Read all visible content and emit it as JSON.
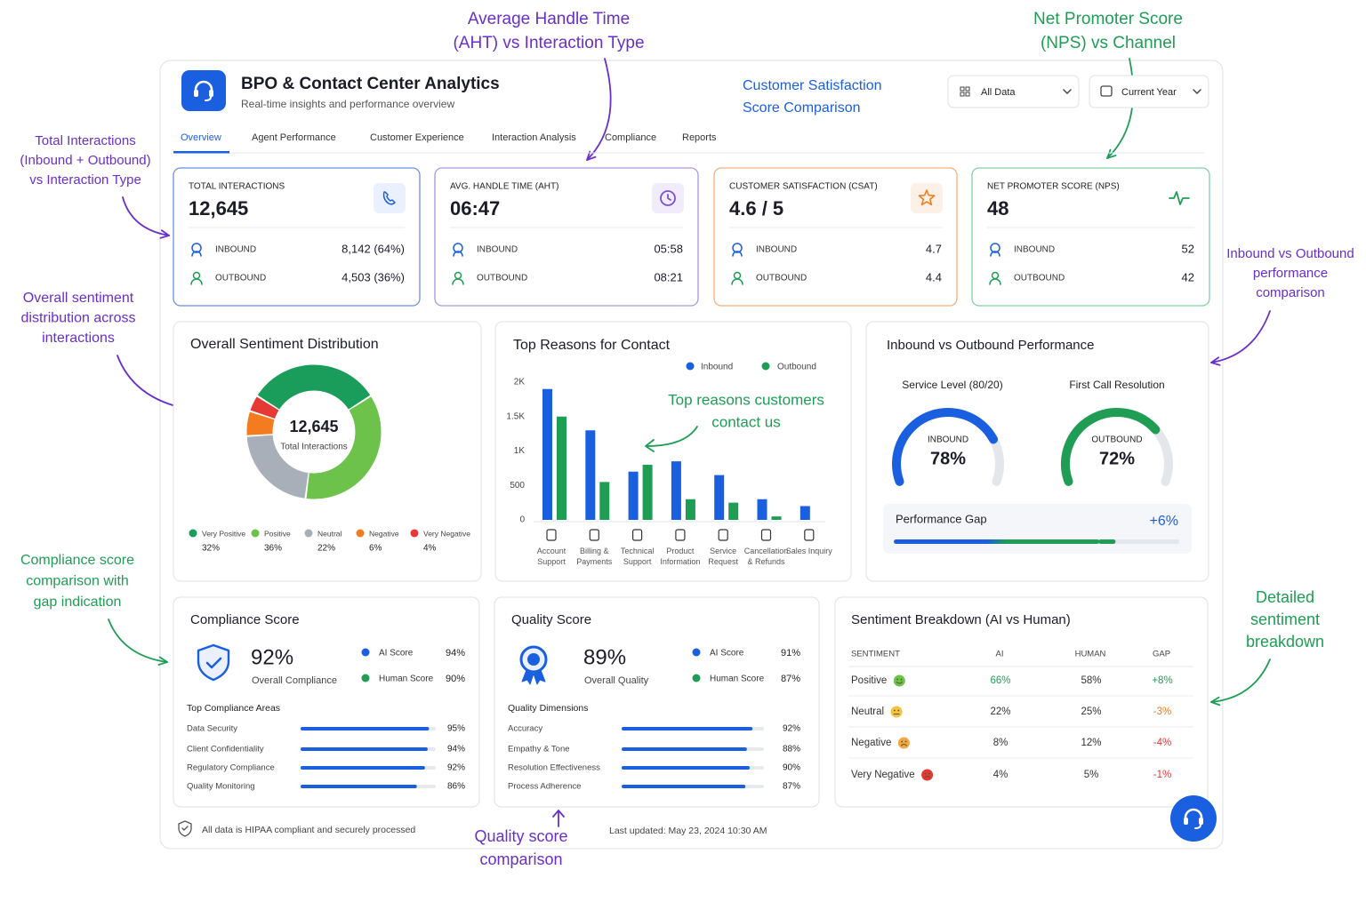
{
  "annotations": [
    {
      "lines": [
        "Average Handle Time",
        "(AHT) vs Interaction Type"
      ]
    },
    {
      "lines": [
        "Net Promoter Score",
        "(NPS) vs Channel"
      ]
    },
    {
      "lines": [
        "Total Interactions",
        "(Inbound + Outbound)",
        "vs Interaction Type"
      ]
    },
    {
      "lines": [
        "Overall sentiment",
        "distribution across",
        "interactions"
      ]
    },
    {
      "lines": [
        "Compliance score",
        "comparison with",
        "gap indication"
      ]
    },
    {
      "lines": [
        "Inbound vs Outbound",
        "performance",
        "comparison"
      ]
    },
    {
      "lines": [
        "Detailed",
        "sentiment",
        "breakdown"
      ]
    },
    {
      "lines": [
        "Quality score",
        "comparison"
      ]
    }
  ],
  "header": {
    "title": "BPO & Contact Center Analytics",
    "subtitle": "Real-time insights and performance overview",
    "callout": [
      "Customer Satisfaction",
      "Score Comparison"
    ],
    "filters": [
      "All Data",
      "Current Year"
    ]
  },
  "tabs": [
    "Overview",
    "Agent Performance",
    "Customer Experience",
    "Interaction Analysis",
    "Compliance",
    "Reports"
  ],
  "kpis": [
    {
      "label": "TOTAL INTERACTIONS",
      "value": "12,645",
      "rows": [
        {
          "label": "INBOUND",
          "value": "8,142 (64%)"
        },
        {
          "label": "OUTBOUND",
          "value": "4,503 (36%)"
        }
      ]
    },
    {
      "label": "AVG. HANDLE TIME (AHT)",
      "value": "06:47",
      "rows": [
        {
          "label": "INBOUND",
          "value": "05:58"
        },
        {
          "label": "OUTBOUND",
          "value": "08:21"
        }
      ]
    },
    {
      "label": "CUSTOMER SATISFACTION (CSAT)",
      "value": "4.6 / 5",
      "rows": [
        {
          "label": "INBOUND",
          "value": "4.7"
        },
        {
          "label": "OUTBOUND",
          "value": "4.4"
        }
      ]
    },
    {
      "label": "NET PROMOTER SCORE (NPS)",
      "value": "48",
      "rows": [
        {
          "label": "INBOUND",
          "value": "52"
        },
        {
          "label": "OUTBOUND",
          "value": "42"
        }
      ]
    }
  ],
  "sentiment_chart": {
    "type": "pie",
    "title": "Overall Sentiment Distribution",
    "center_value": "12,645",
    "center_label": "Total Interactions",
    "categories": [
      "Very Positive",
      "Positive",
      "Neutral",
      "Negative",
      "Very Negative"
    ],
    "values": [
      32,
      36,
      22,
      6,
      4
    ],
    "value_labels": [
      "32%",
      "36%",
      "22%",
      "6%",
      "4%"
    ],
    "colors": [
      "#1a9c5a",
      "#6cc24a",
      "#a9afb8",
      "#f47c20",
      "#e53935"
    ]
  },
  "reasons_chart": {
    "type": "bar",
    "title": "Top Reasons for Contact",
    "categories": [
      "Account Support",
      "Billing & Payments",
      "Technical Support",
      "Product Information",
      "Service Request",
      "Cancellation & Refunds",
      "Sales Inquiry"
    ],
    "series": [
      {
        "name": "Inbound",
        "color": "#1a5fe0",
        "values": [
          1900,
          1300,
          700,
          850,
          650,
          300,
          200
        ]
      },
      {
        "name": "Outbound",
        "color": "#1f9d55",
        "values": [
          1500,
          550,
          800,
          300,
          250,
          50,
          null
        ]
      }
    ],
    "ylim": [
      0,
      2000
    ],
    "yticks": [
      0,
      500,
      {
        "value": 1000,
        "label": "1K"
      },
      {
        "value": 1500,
        "label": "1.5K"
      },
      {
        "value": 2000,
        "label": "2K"
      }
    ],
    "annotation": [
      "Top reasons customers",
      "contact us"
    ]
  },
  "performance": {
    "title": "Inbound vs Outbound Performance",
    "gauges": [
      {
        "title": "Service Level (80/20)",
        "label": "INBOUND",
        "value": 78,
        "value_label": "78%",
        "color": "#1a5fe0"
      },
      {
        "title": "First Call Resolution",
        "label": "OUTBOUND",
        "value": 72,
        "value_label": "72%",
        "color": "#1f9d55"
      }
    ],
    "gap": {
      "label": "Performance Gap",
      "value": 6,
      "value_label": "+6%"
    }
  },
  "compliance": {
    "title": "Compliance Score",
    "value": "92%",
    "label": "Overall Compliance",
    "scores": [
      {
        "name": "AI Score",
        "value": "94%"
      },
      {
        "name": "Human Score",
        "value": "90%"
      }
    ],
    "areas_title": "Top Compliance Areas",
    "areas": [
      {
        "name": "Data Security",
        "value": 95,
        "value_label": "95%"
      },
      {
        "name": "Client Confidentiality",
        "value": 94,
        "value_label": "94%"
      },
      {
        "name": "Regulatory Compliance",
        "value": 92,
        "value_label": "92%"
      },
      {
        "name": "Quality Monitoring",
        "value": 86,
        "value_label": "86%"
      }
    ]
  },
  "quality": {
    "title": "Quality Score",
    "value": "89%",
    "label": "Overall Quality",
    "scores": [
      {
        "name": "AI Score",
        "value": "91%"
      },
      {
        "name": "Human Score",
        "value": "87%"
      }
    ],
    "areas_title": "Quality Dimensions",
    "areas": [
      {
        "name": "Accuracy",
        "value": 92,
        "value_label": "92%"
      },
      {
        "name": "Empathy & Tone",
        "value": 88,
        "value_label": "88%"
      },
      {
        "name": "Resolution Effectiveness",
        "value": 90,
        "value_label": "90%"
      },
      {
        "name": "Process Adherence",
        "value": 87,
        "value_label": "87%"
      }
    ]
  },
  "sentiment_table": {
    "title": "Sentiment Breakdown (AI vs Human)",
    "columns": [
      "SENTIMENT",
      "AI",
      "HUMAN",
      "GAP"
    ],
    "rows": [
      [
        "Positive",
        "66%",
        "58%",
        "+8%"
      ],
      [
        "Neutral",
        "22%",
        "25%",
        "-3%"
      ],
      [
        "Negative",
        "8%",
        "12%",
        "-4%"
      ],
      [
        "Very Negative",
        "4%",
        "5%",
        "-1%"
      ]
    ]
  },
  "footer": {
    "note": "All data is HIPAA compliant and securely processed",
    "updated": "Last updated: May 23, 2024 10:30 AM"
  }
}
